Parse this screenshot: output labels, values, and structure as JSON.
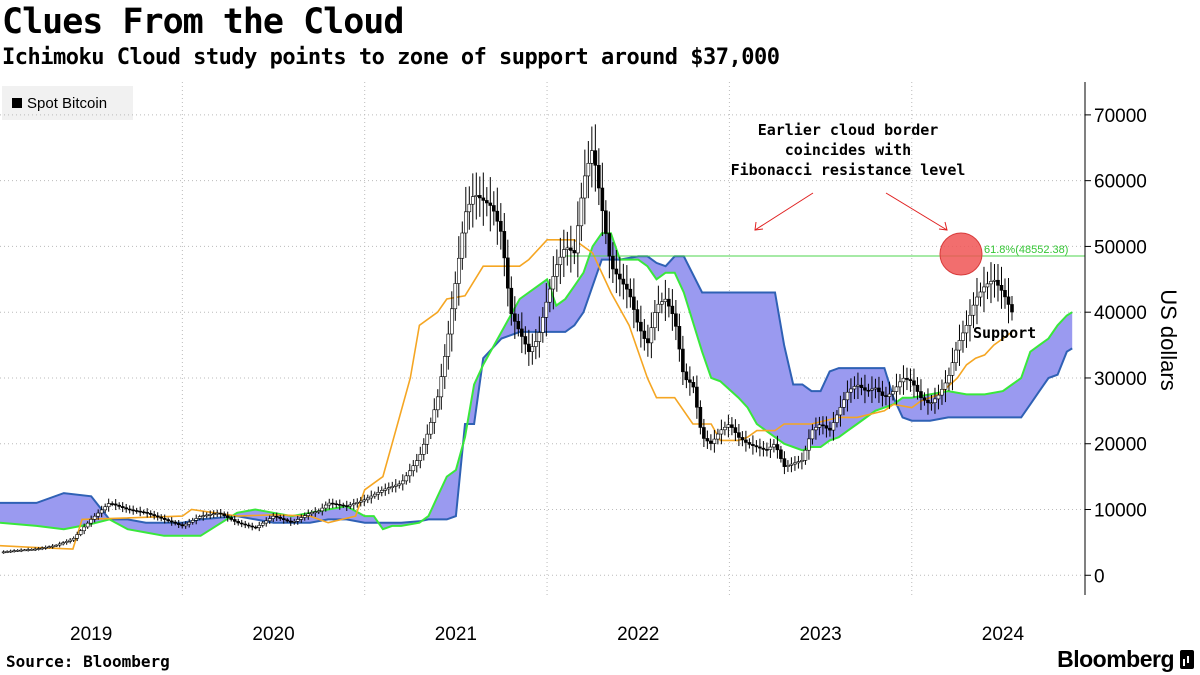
{
  "header": {
    "title": "Clues From the Cloud",
    "subtitle": "Ichimoku Cloud study points to zone of support around $37,000"
  },
  "legend": {
    "items": [
      {
        "label": "Spot Bitcoin",
        "color": "#000000"
      }
    ]
  },
  "footer": {
    "source": "Source: Bloomberg",
    "brand": "Bloomberg"
  },
  "annotations": {
    "note_lines": [
      "Earlier cloud border",
      "coincides with",
      "Fibonacci resistance level"
    ],
    "fib_label": "61.8%(48552.38)",
    "support_label": "Support"
  },
  "colors": {
    "price": "#000000",
    "orange_line": "#f5a623",
    "cloud_fill": "#9a9af0",
    "cloud_top_line": "#39e83b",
    "cloud_bottom_line": "#2f61b5",
    "fib_line": "#4dd54d",
    "arrow": "#e02020",
    "circle": "#f05555"
  },
  "chart_data": {
    "type": "line",
    "title": "Clues From the Cloud",
    "ylabel": "US dollars",
    "xlabel": "",
    "ylim": [
      -3000,
      75000
    ],
    "xlim": [
      2018.5,
      2024.45
    ],
    "yticks": [
      0,
      10000,
      20000,
      30000,
      40000,
      50000,
      60000,
      70000
    ],
    "xticks": [
      {
        "label": "2019",
        "x": 2019
      },
      {
        "label": "2020",
        "x": 2020
      },
      {
        "label": "2021",
        "x": 2021
      },
      {
        "label": "2022",
        "x": 2022
      },
      {
        "label": "2023",
        "x": 2023
      },
      {
        "label": "2024",
        "x": 2024
      }
    ],
    "grid": true,
    "fib_level": 48552.38,
    "series": [
      {
        "name": "Spot Bitcoin",
        "x": [
          2018.5,
          2018.6,
          2018.7,
          2018.8,
          2018.9,
          2019.0,
          2019.1,
          2019.2,
          2019.3,
          2019.4,
          2019.5,
          2019.6,
          2019.7,
          2019.8,
          2019.9,
          2020.0,
          2020.1,
          2020.2,
          2020.25,
          2020.3,
          2020.4,
          2020.5,
          2020.6,
          2020.7,
          2020.8,
          2020.85,
          2020.9,
          2020.95,
          2021.0,
          2021.05,
          2021.1,
          2021.15,
          2021.2,
          2021.25,
          2021.3,
          2021.35,
          2021.4,
          2021.45,
          2021.5,
          2021.55,
          2021.6,
          2021.65,
          2021.7,
          2021.75,
          2021.8,
          2021.85,
          2021.9,
          2021.95,
          2022.0,
          2022.05,
          2022.1,
          2022.15,
          2022.2,
          2022.25,
          2022.3,
          2022.35,
          2022.4,
          2022.45,
          2022.5,
          2022.55,
          2022.6,
          2022.65,
          2022.7,
          2022.75,
          2022.8,
          2022.85,
          2022.9,
          2022.95,
          2023.0,
          2023.05,
          2023.1,
          2023.15,
          2023.2,
          2023.25,
          2023.3,
          2023.35,
          2023.4,
          2023.45,
          2023.5,
          2023.55,
          2023.6,
          2023.65,
          2023.7,
          2023.75,
          2023.8,
          2023.85,
          2023.9,
          2023.95,
          2024.0,
          2024.05
        ],
        "values": [
          3500,
          3800,
          4000,
          4500,
          5500,
          8500,
          11000,
          10000,
          9500,
          8500,
          7500,
          9000,
          9500,
          8000,
          7200,
          9000,
          8000,
          9500,
          9800,
          11000,
          10500,
          11500,
          13000,
          14000,
          18000,
          22000,
          27000,
          35000,
          45000,
          55000,
          58000,
          57000,
          56000,
          52000,
          40000,
          37000,
          34000,
          36000,
          42000,
          47000,
          50000,
          49000,
          60000,
          65000,
          56000,
          47000,
          45000,
          43000,
          38000,
          35000,
          41000,
          42000,
          39000,
          30000,
          29000,
          21000,
          20000,
          22000,
          23000,
          21000,
          20000,
          19500,
          19000,
          20000,
          16500,
          17000,
          17500,
          22000,
          23000,
          22000,
          25000,
          28000,
          29000,
          28000,
          28500,
          27000,
          28000,
          30000,
          29500,
          27000,
          26000,
          27500,
          30000,
          35000,
          38000,
          42000,
          44000,
          45000,
          43000,
          40000
        ]
      },
      {
        "name": "Orange line",
        "x": [
          2018.5,
          2018.7,
          2018.9,
          2018.95,
          2019.5,
          2019.55,
          2019.8,
          2020.0,
          2020.2,
          2020.3,
          2020.45,
          2020.5,
          2020.6,
          2020.65,
          2020.75,
          2020.8,
          2020.9,
          2020.95,
          2021.05,
          2021.15,
          2021.25,
          2021.35,
          2021.4,
          2021.5,
          2021.65,
          2021.75,
          2021.85,
          2021.95,
          2022.05,
          2022.1,
          2022.2,
          2022.3,
          2022.4,
          2022.45,
          2022.5,
          2022.55,
          2022.6,
          2022.65,
          2022.75,
          2022.8,
          2022.95,
          2023.1,
          2023.2,
          2023.35,
          2023.4,
          2023.5,
          2023.55,
          2023.65,
          2023.75,
          2023.8,
          2023.85,
          2023.9,
          2023.95,
          2024.05
        ],
        "values": [
          4500,
          4200,
          4000,
          8500,
          9000,
          10000,
          9000,
          9200,
          9000,
          8000,
          9000,
          13000,
          15000,
          20000,
          30000,
          38000,
          40000,
          42000,
          42500,
          47000,
          47000,
          47000,
          48000,
          51000,
          51000,
          49000,
          43000,
          38000,
          30000,
          27000,
          27000,
          23000,
          23000,
          20500,
          20500,
          20500,
          21000,
          22000,
          22000,
          23000,
          23000,
          24000,
          24000,
          25000,
          26000,
          25500,
          26500,
          27500,
          30000,
          32000,
          33000,
          33500,
          35000,
          37000
        ]
      },
      {
        "name": "Cloud top",
        "x": [
          2018.5,
          2018.7,
          2018.85,
          2019.0,
          2019.1,
          2019.2,
          2019.3,
          2019.4,
          2019.5,
          2019.6,
          2019.8,
          2019.9,
          2020.0,
          2020.1,
          2020.2,
          2020.3,
          2020.4,
          2020.5,
          2020.55,
          2020.6,
          2020.65,
          2020.7,
          2020.8,
          2020.85,
          2020.9,
          2020.95,
          2021.0,
          2021.05,
          2021.1,
          2021.15,
          2021.25,
          2021.35,
          2021.45,
          2021.5,
          2021.55,
          2021.6,
          2021.65,
          2021.7,
          2021.75,
          2021.8,
          2021.85,
          2021.9,
          2022.0,
          2022.05,
          2022.1,
          2022.15,
          2022.2,
          2022.25,
          2022.35,
          2022.4,
          2022.45,
          2022.55,
          2022.6,
          2022.65,
          2022.75,
          2022.8,
          2022.85,
          2022.9,
          2022.95,
          2023.0,
          2023.05,
          2023.1,
          2023.15,
          2023.2,
          2023.3,
          2023.35,
          2023.4,
          2023.45,
          2023.5,
          2023.6,
          2023.7,
          2023.8,
          2023.9,
          2024.0,
          2024.05,
          2024.1,
          2024.15,
          2024.2,
          2024.25,
          2024.3,
          2024.35,
          2024.38
        ],
        "values": [
          8000,
          7500,
          7000,
          7800,
          8500,
          7000,
          6500,
          6000,
          6000,
          6000,
          9500,
          10000,
          9500,
          9000,
          9500,
          10000,
          10500,
          9000,
          9000,
          7000,
          7500,
          7500,
          8000,
          9000,
          12000,
          15000,
          16000,
          21000,
          29000,
          32000,
          37000,
          42000,
          44000,
          45000,
          41000,
          42000,
          44000,
          46000,
          50000,
          52000,
          52000,
          48000,
          48000,
          47000,
          45000,
          46000,
          46000,
          43000,
          34000,
          30000,
          29500,
          27000,
          25500,
          23000,
          21000,
          20000,
          19500,
          19000,
          19500,
          19500,
          20500,
          21000,
          22000,
          23000,
          25000,
          25500,
          26000,
          27000,
          27000,
          27500,
          28000,
          27500,
          27500,
          28000,
          29000,
          30000,
          34000,
          35000,
          36000,
          38000,
          39500,
          40000
        ]
      },
      {
        "name": "Cloud bottom",
        "x": [
          2018.5,
          2018.7,
          2018.85,
          2019.0,
          2019.1,
          2019.2,
          2019.3,
          2019.4,
          2019.5,
          2019.6,
          2019.8,
          2019.9,
          2020.0,
          2020.1,
          2020.2,
          2020.3,
          2020.4,
          2020.5,
          2020.55,
          2020.6,
          2020.65,
          2020.7,
          2020.8,
          2020.85,
          2020.9,
          2020.95,
          2021.0,
          2021.05,
          2021.1,
          2021.15,
          2021.25,
          2021.35,
          2021.45,
          2021.5,
          2021.55,
          2021.6,
          2021.65,
          2021.7,
          2021.75,
          2021.8,
          2021.85,
          2021.9,
          2022.0,
          2022.05,
          2022.1,
          2022.15,
          2022.2,
          2022.25,
          2022.35,
          2022.4,
          2022.45,
          2022.55,
          2022.6,
          2022.65,
          2022.75,
          2022.8,
          2022.85,
          2022.9,
          2022.95,
          2023.0,
          2023.05,
          2023.1,
          2023.15,
          2023.2,
          2023.3,
          2023.35,
          2023.4,
          2023.45,
          2023.5,
          2023.6,
          2023.7,
          2023.8,
          2023.9,
          2024.0,
          2024.05,
          2024.1,
          2024.15,
          2024.2,
          2024.25,
          2024.3,
          2024.35,
          2024.38
        ],
        "values": [
          11000,
          11000,
          12500,
          12000,
          8500,
          8500,
          8000,
          8000,
          8000,
          8500,
          9000,
          8500,
          8000,
          8000,
          8000,
          8500,
          8500,
          8000,
          8000,
          8000,
          8000,
          8000,
          8200,
          8500,
          8500,
          8500,
          9000,
          23000,
          23000,
          33000,
          36000,
          37000,
          37000,
          37000,
          37000,
          37000,
          38000,
          40000,
          44000,
          48000,
          48000,
          48000,
          48500,
          48500,
          47500,
          47000,
          48500,
          48500,
          43000,
          43000,
          43000,
          43000,
          43000,
          43000,
          43000,
          35000,
          29000,
          29000,
          28000,
          28000,
          31000,
          31500,
          31500,
          31500,
          31500,
          31500,
          27000,
          24000,
          23500,
          23500,
          24000,
          24000,
          24000,
          24000,
          24000,
          24000,
          26000,
          28000,
          30000,
          30500,
          34000,
          34500
        ]
      }
    ]
  }
}
